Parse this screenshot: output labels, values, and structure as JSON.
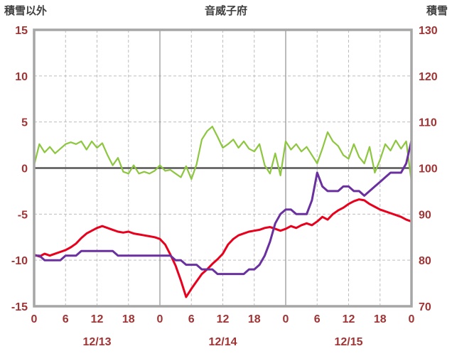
{
  "chart_data": {
    "type": "line",
    "title": "音威子府",
    "left_axis_title": "積雪以外",
    "right_axis_title": "積雪",
    "left_axis": {
      "min": -15,
      "max": 15,
      "ticks": [
        15,
        10,
        5,
        0,
        -5,
        -10,
        -15
      ]
    },
    "right_axis": {
      "min": 70,
      "max": 130,
      "ticks": [
        130,
        120,
        110,
        100,
        90,
        80,
        70
      ]
    },
    "x_axis": {
      "start_hour": 0,
      "end_hour": 72,
      "tick_hours": [
        0,
        6,
        12,
        18,
        24,
        30,
        36,
        42,
        48,
        54,
        60,
        66,
        72
      ],
      "tick_labels": [
        "0",
        "6",
        "12",
        "18",
        "0",
        "6",
        "12",
        "18",
        "0",
        "6",
        "12",
        "18",
        "0"
      ],
      "date_labels": [
        {
          "label": "12/13",
          "hour": 12
        },
        {
          "label": "12/14",
          "hour": 36
        },
        {
          "label": "12/15",
          "hour": 60
        }
      ]
    },
    "colors": {
      "axis_label": "#a03333",
      "title_text": "#3f3f3f",
      "frame": "#a6a6a6",
      "grid_solid": "#8f8f8f",
      "grid_dash": "#bdbdbd",
      "zero_line": "#555555",
      "background": "#ffffff"
    },
    "series": [
      {
        "name": "green",
        "axis": "left",
        "color": "#8dc63f",
        "width": 2.2,
        "values": [
          0.3,
          2.6,
          1.7,
          2.3,
          1.6,
          2.1,
          2.6,
          2.8,
          2.6,
          2.9,
          2.0,
          2.9,
          2.2,
          2.7,
          1.4,
          0.3,
          1.1,
          -0.4,
          -0.6,
          0.3,
          -0.6,
          -0.4,
          -0.6,
          -0.3,
          0.3,
          -0.3,
          -0.2,
          -0.6,
          -1.0,
          0.2,
          -1.2,
          0.4,
          3.1,
          4.0,
          4.5,
          3.4,
          2.2,
          2.6,
          3.1,
          2.2,
          2.9,
          2.1,
          1.8,
          2.6,
          0.3,
          -0.6,
          1.6,
          -0.8,
          2.9,
          2.0,
          2.6,
          1.8,
          2.3,
          1.4,
          0.5,
          2.1,
          3.9,
          2.9,
          2.4,
          1.4,
          1.0,
          2.6,
          1.2,
          0.5,
          2.3,
          -0.5,
          0.9,
          2.6,
          1.9,
          3.0,
          2.1,
          2.9,
          -1.5
        ]
      },
      {
        "name": "red",
        "axis": "left",
        "color": "#e8001c",
        "width": 3,
        "values": [
          -9.4,
          -9.6,
          -9.3,
          -9.5,
          -9.3,
          -9.1,
          -8.9,
          -8.6,
          -8.2,
          -7.6,
          -7.1,
          -6.8,
          -6.5,
          -6.3,
          -6.5,
          -6.7,
          -6.9,
          -7.0,
          -6.9,
          -7.1,
          -7.2,
          -7.3,
          -7.4,
          -7.5,
          -7.7,
          -8.3,
          -9.4,
          -10.6,
          -12.2,
          -14.0,
          -13.1,
          -12.3,
          -11.5,
          -11.0,
          -10.4,
          -9.9,
          -9.3,
          -8.3,
          -7.7,
          -7.3,
          -7.1,
          -6.9,
          -6.8,
          -6.7,
          -6.5,
          -6.4,
          -6.6,
          -6.8,
          -6.6,
          -6.3,
          -6.5,
          -6.2,
          -6.0,
          -6.2,
          -5.8,
          -5.3,
          -5.6,
          -5.0,
          -4.6,
          -4.3,
          -3.9,
          -3.6,
          -3.4,
          -3.5,
          -3.9,
          -4.2,
          -4.5,
          -4.7,
          -4.9,
          -5.1,
          -5.3,
          -5.6,
          -5.8
        ]
      },
      {
        "name": "purple",
        "axis": "right",
        "color": "#6a30a0",
        "width": 3,
        "values": [
          81,
          81,
          80,
          80,
          80,
          80,
          81,
          81,
          81,
          82,
          82,
          82,
          82,
          82,
          82,
          82,
          81,
          81,
          81,
          81,
          81,
          81,
          81,
          81,
          81,
          81,
          81,
          80,
          80,
          79,
          79,
          79,
          78,
          78,
          78,
          77,
          77,
          77,
          77,
          77,
          77,
          78,
          78,
          79,
          81,
          84,
          88,
          90,
          91,
          91,
          90,
          90,
          90,
          93,
          99,
          96,
          95,
          95,
          95,
          96,
          96,
          95,
          95,
          94,
          95,
          96,
          97,
          98,
          99,
          99,
          99,
          101,
          106
        ]
      }
    ]
  }
}
